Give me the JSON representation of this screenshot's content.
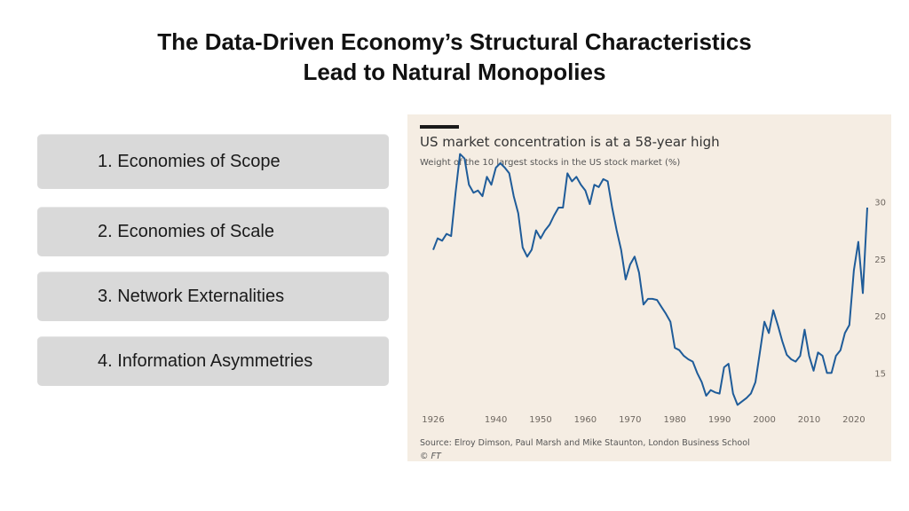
{
  "slide": {
    "title_line1": "The Data-Driven Economy’s Structural Characteristics",
    "title_line2": "Lead to Natural Monopolies"
  },
  "items": [
    {
      "label": "1. Economies of Scope"
    },
    {
      "label": "2. Economies of Scale"
    },
    {
      "label": "3. Network Externalities"
    },
    {
      "label": "4. Information Asymmetries"
    }
  ],
  "chart": {
    "source": "Source: Elroy Dimson, Paul Marsh and Mike Staunton, London Business School",
    "credit": "© FT",
    "colors": {
      "line": "#1f5c99",
      "background": "#f5ede3",
      "title_bar": "#1a1a1a"
    }
  },
  "chart_data": {
    "type": "line",
    "title": "US market concentration is at a 58-year high",
    "subtitle": "Weight of the 10 largest stocks in the US stock market (%)",
    "xlabel": "",
    "ylabel": "",
    "xlim": [
      1926,
      2023
    ],
    "ylim": [
      12,
      33
    ],
    "x_ticks": [
      1926,
      1940,
      1950,
      1960,
      1970,
      1980,
      1990,
      2000,
      2010,
      2020
    ],
    "y_ticks": [
      15,
      20,
      25,
      30
    ],
    "y_axis_position": "right",
    "grid": false,
    "series": [
      {
        "values": [
          [
            1926,
            25.8
          ],
          [
            1927,
            26.8
          ],
          [
            1928,
            26.6
          ],
          [
            1929,
            27.2
          ],
          [
            1930,
            27.0
          ],
          [
            1931,
            30.8
          ],
          [
            1932,
            34.2
          ],
          [
            1933,
            33.8
          ],
          [
            1934,
            31.5
          ],
          [
            1935,
            30.8
          ],
          [
            1936,
            31.0
          ],
          [
            1937,
            30.5
          ],
          [
            1938,
            32.2
          ],
          [
            1939,
            31.5
          ],
          [
            1940,
            33.0
          ],
          [
            1941,
            33.4
          ],
          [
            1942,
            33.0
          ],
          [
            1943,
            32.5
          ],
          [
            1944,
            30.5
          ],
          [
            1945,
            29.0
          ],
          [
            1946,
            26.0
          ],
          [
            1947,
            25.2
          ],
          [
            1948,
            25.8
          ],
          [
            1949,
            27.5
          ],
          [
            1950,
            26.8
          ],
          [
            1951,
            27.5
          ],
          [
            1952,
            28.0
          ],
          [
            1953,
            28.8
          ],
          [
            1954,
            29.5
          ],
          [
            1955,
            29.5
          ],
          [
            1956,
            32.5
          ],
          [
            1957,
            31.8
          ],
          [
            1958,
            32.2
          ],
          [
            1959,
            31.5
          ],
          [
            1960,
            31.0
          ],
          [
            1961,
            29.8
          ],
          [
            1962,
            31.5
          ],
          [
            1963,
            31.3
          ],
          [
            1964,
            32.0
          ],
          [
            1965,
            31.8
          ],
          [
            1966,
            29.5
          ],
          [
            1967,
            27.5
          ],
          [
            1968,
            25.8
          ],
          [
            1969,
            23.2
          ],
          [
            1970,
            24.5
          ],
          [
            1971,
            25.2
          ],
          [
            1972,
            23.8
          ],
          [
            1973,
            21.0
          ],
          [
            1974,
            21.5
          ],
          [
            1975,
            21.5
          ],
          [
            1976,
            21.4
          ],
          [
            1977,
            20.8
          ],
          [
            1978,
            20.2
          ],
          [
            1979,
            19.5
          ],
          [
            1980,
            17.2
          ],
          [
            1981,
            17.0
          ],
          [
            1982,
            16.5
          ],
          [
            1983,
            16.2
          ],
          [
            1984,
            16.0
          ],
          [
            1985,
            15.0
          ],
          [
            1986,
            14.2
          ],
          [
            1987,
            13.0
          ],
          [
            1988,
            13.5
          ],
          [
            1989,
            13.3
          ],
          [
            1990,
            13.2
          ],
          [
            1991,
            15.5
          ],
          [
            1992,
            15.8
          ],
          [
            1993,
            13.2
          ],
          [
            1994,
            12.2
          ],
          [
            1995,
            12.5
          ],
          [
            1996,
            12.8
          ],
          [
            1997,
            13.2
          ],
          [
            1998,
            14.2
          ],
          [
            1999,
            16.8
          ],
          [
            2000,
            19.5
          ],
          [
            2001,
            18.5
          ],
          [
            2002,
            20.5
          ],
          [
            2003,
            19.2
          ],
          [
            2004,
            17.8
          ],
          [
            2005,
            16.6
          ],
          [
            2006,
            16.2
          ],
          [
            2007,
            16.0
          ],
          [
            2008,
            16.5
          ],
          [
            2009,
            18.8
          ],
          [
            2010,
            16.5
          ],
          [
            2011,
            15.2
          ],
          [
            2012,
            16.8
          ],
          [
            2013,
            16.5
          ],
          [
            2014,
            15.0
          ],
          [
            2015,
            15.0
          ],
          [
            2016,
            16.5
          ],
          [
            2017,
            17.0
          ],
          [
            2018,
            18.5
          ],
          [
            2019,
            19.2
          ],
          [
            2020,
            24.0
          ],
          [
            2021,
            26.5
          ],
          [
            2022,
            22.0
          ],
          [
            2023,
            29.5
          ]
        ]
      }
    ]
  }
}
